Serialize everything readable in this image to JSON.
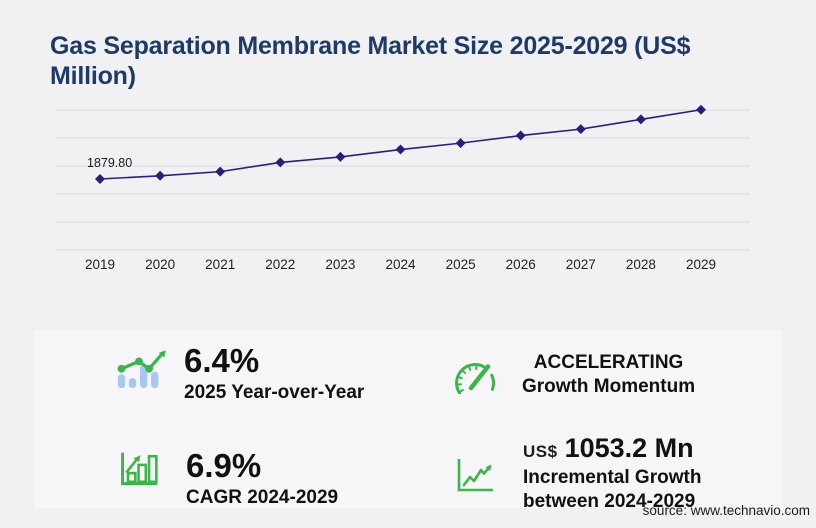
{
  "header": {
    "title_lines": [
      "Gas Separation Membrane Market Size 2025-2029 (US$",
      "Million)"
    ]
  },
  "chart_data": {
    "type": "line",
    "title": "Gas Separation Membrane Market Size 2025-2029 (US$ Million)",
    "x_labels": [
      "2019",
      "2020",
      "2021",
      "2022",
      "2023",
      "2024",
      "2025",
      "2026",
      "2027",
      "2028",
      "2029"
    ],
    "series": [
      {
        "name": "Market size (US$ Million)",
        "values": [
          1879.8,
          1965,
          2075,
          2319,
          2465,
          2660,
          2830,
          3030,
          3200,
          3457,
          3713
        ]
      }
    ],
    "first_point_label": "1879.80",
    "ylim": [
      0,
      4150
    ],
    "grid": "horizontal",
    "legend": "none",
    "marker": "diamond"
  },
  "stats": {
    "yoy": {
      "icon": "bar-line-growth-icon",
      "value": "6.4%",
      "label": "2025 Year-over-Year"
    },
    "momentum": {
      "icon": "speedometer-icon",
      "line1": "ACCELERATING",
      "line2": "Growth Momentum"
    },
    "cagr": {
      "icon": "bar-chart-growth-icon",
      "value": "6.9%",
      "label": "CAGR 2024-2029"
    },
    "incremental": {
      "icon": "line-growth-icon",
      "currency": "US$",
      "value": "1053.2 Mn",
      "label_line1": "Incremental Growth",
      "label_line2": "between 2024-2029"
    }
  },
  "footer": {
    "source": "source: www.technavio.com"
  },
  "colors": {
    "page_bg": "#f1f1f3",
    "panel_bg": "#f6f6f8",
    "title": "#1d3a68",
    "line": "#25217a",
    "grid": "#d9d9da",
    "axis_text": "#1f1f1f",
    "green": "#3cb44a",
    "bar_blue": "#a9c8f0"
  }
}
